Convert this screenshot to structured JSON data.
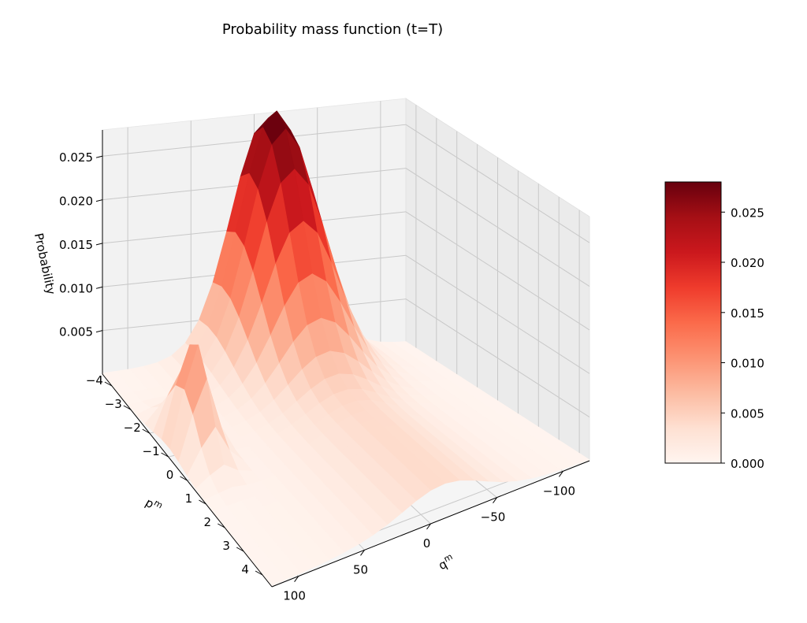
{
  "chart_data": {
    "type": "surface3d",
    "title": "Probability mass function (t=T)",
    "xlabel": "q^m",
    "ylabel": "p^m",
    "zlabel": "Probability",
    "colormap": "Reds",
    "colormap_stops": [
      "#fff5f0",
      "#fee0d2",
      "#fcbba1",
      "#fc9272",
      "#fb6a4a",
      "#ef3b2c",
      "#cb181d",
      "#a50f15",
      "#67000d"
    ],
    "xlim": [
      -120,
      120
    ],
    "ylim": [
      -4.5,
      4.5
    ],
    "zlim": [
      0,
      0.028
    ],
    "x_ticks": [
      -100,
      -50,
      0,
      50,
      100
    ],
    "x_tick_labels": [
      "−100",
      "−50",
      "0",
      "50",
      "100"
    ],
    "y_ticks": [
      -4,
      -3,
      -2,
      -1,
      0,
      1,
      2,
      3,
      4
    ],
    "y_tick_labels": [
      "−4",
      "−3",
      "−2",
      "−1",
      "0",
      "1",
      "2",
      "3",
      "4"
    ],
    "z_ticks": [
      0.005,
      0.01,
      0.015,
      0.02,
      0.025
    ],
    "z_tick_labels": [
      "0.005",
      "0.010",
      "0.015",
      "0.020",
      "0.025"
    ],
    "colorbar_ticks": [
      0.0,
      0.005,
      0.01,
      0.015,
      0.02,
      0.025
    ],
    "colorbar_tick_labels": [
      "0.000",
      "0.005",
      "0.010",
      "0.015",
      "0.020",
      "0.025"
    ],
    "grid": true,
    "surface": {
      "q_range": [
        -120,
        120
      ],
      "p_range": [
        -4.5,
        4.5
      ],
      "peaks": [
        {
          "q": -10,
          "p": -4.0,
          "height": 0.028
        },
        {
          "q": 100,
          "p": -1.0,
          "height": 0.0125
        }
      ]
    }
  }
}
